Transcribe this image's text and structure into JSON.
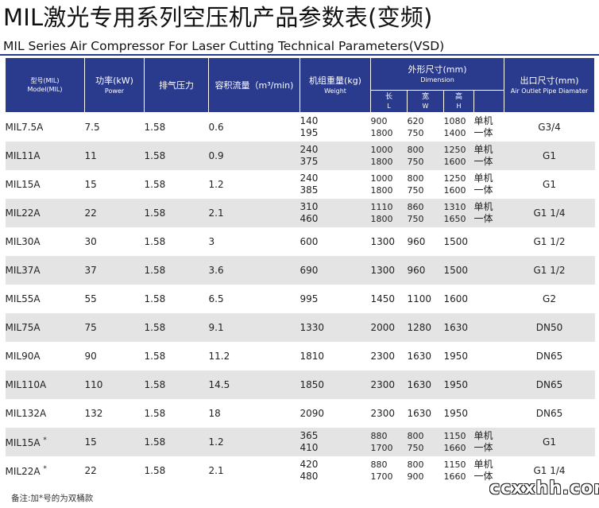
{
  "title": {
    "zh": "MIL激光专用系列空压机产品参数表(变频)",
    "en": "MIL Series Air Compressor For Laser Cutting Technical Parameters(VSD)"
  },
  "headers": {
    "model": {
      "zh": "型号(MIL)",
      "en": "Model(MIL)"
    },
    "power": {
      "zh": "功率(kW)",
      "en": "Power"
    },
    "pressure": {
      "zh": "排气压力"
    },
    "flow": {
      "zh": "容积流量（m³/min)"
    },
    "weight": {
      "zh": "机组重量(kg)",
      "en": "Weight"
    },
    "dimension": {
      "zh": "外形尺寸(mm)",
      "en": "Dimension"
    },
    "length": {
      "zh": "长",
      "en": "L"
    },
    "width": {
      "zh": "宽",
      "en": "W"
    },
    "height": {
      "zh": "高",
      "en": "H"
    },
    "outlet": {
      "zh": "出口尺寸(mm)",
      "en": "Air Outlet Pipe Diamater"
    }
  },
  "rows": [
    {
      "model": "MIL7.5A",
      "power": "7.5",
      "pressure": "1.58",
      "flow": "0.6",
      "weight": [
        "140",
        "195"
      ],
      "l": [
        "900",
        "1800"
      ],
      "w": [
        "620",
        "750"
      ],
      "h": [
        "1080",
        "1400"
      ],
      "tag": [
        "单机",
        "一体"
      ],
      "outlet": "G3/4"
    },
    {
      "model": "MIL11A",
      "power": "11",
      "pressure": "1.58",
      "flow": "0.9",
      "weight": [
        "240",
        "375"
      ],
      "l": [
        "1000",
        "1800"
      ],
      "w": [
        "800",
        "750"
      ],
      "h": [
        "1250",
        "1600"
      ],
      "tag": [
        "单机",
        "一体"
      ],
      "outlet": "G1"
    },
    {
      "model": "MIL15A",
      "power": "15",
      "pressure": "1.58",
      "flow": "1.2",
      "weight": [
        "240",
        "385"
      ],
      "l": [
        "1000",
        "1800"
      ],
      "w": [
        "800",
        "750"
      ],
      "h": [
        "1250",
        "1600"
      ],
      "tag": [
        "单机",
        "一体"
      ],
      "outlet": "G1"
    },
    {
      "model": "MIL22A",
      "power": "22",
      "pressure": "1.58",
      "flow": "2.1",
      "weight": [
        "310",
        "460"
      ],
      "l": [
        "1110",
        "1800"
      ],
      "w": [
        "860",
        "750"
      ],
      "h": [
        "1310",
        "1650"
      ],
      "tag": [
        "单机",
        "一体"
      ],
      "outlet": "G1  1/4"
    },
    {
      "model": "MIL30A",
      "power": "30",
      "pressure": "1.58",
      "flow": "3",
      "weight": [
        "600"
      ],
      "l": [
        "1300"
      ],
      "w": [
        "960"
      ],
      "h": [
        "1500"
      ],
      "tag": [],
      "outlet": "G1  1/2"
    },
    {
      "model": "MIL37A",
      "power": "37",
      "pressure": "1.58",
      "flow": "3.6",
      "weight": [
        "690"
      ],
      "l": [
        "1300"
      ],
      "w": [
        "960"
      ],
      "h": [
        "1500"
      ],
      "tag": [],
      "outlet": "G1  1/2"
    },
    {
      "model": "MIL55A",
      "power": "55",
      "pressure": "1.58",
      "flow": "6.5",
      "weight": [
        "995"
      ],
      "l": [
        "1450"
      ],
      "w": [
        "1100"
      ],
      "h": [
        "1600"
      ],
      "tag": [],
      "outlet": "G2"
    },
    {
      "model": "MIL75A",
      "power": "75",
      "pressure": "1.58",
      "flow": "9.1",
      "weight": [
        "1330"
      ],
      "l": [
        "2000"
      ],
      "w": [
        "1280"
      ],
      "h": [
        "1630"
      ],
      "tag": [],
      "outlet": "DN50"
    },
    {
      "model": "MIL90A",
      "power": "90",
      "pressure": "1.58",
      "flow": "11.2",
      "weight": [
        "1810"
      ],
      "l": [
        "2300"
      ],
      "w": [
        "1630"
      ],
      "h": [
        "1950"
      ],
      "tag": [],
      "outlet": "DN65"
    },
    {
      "model": "MIL110A",
      "power": "110",
      "pressure": "1.58",
      "flow": "14.5",
      "weight": [
        "1850"
      ],
      "l": [
        "2300"
      ],
      "w": [
        "1630"
      ],
      "h": [
        "1950"
      ],
      "tag": [],
      "outlet": "DN65"
    },
    {
      "model": "MIL132A",
      "power": "132",
      "pressure": "1.58",
      "flow": "18",
      "weight": [
        "2090"
      ],
      "l": [
        "2300"
      ],
      "w": [
        "1630"
      ],
      "h": [
        "1950"
      ],
      "tag": [],
      "outlet": "DN65"
    },
    {
      "model": "MIL15A",
      "mark": "*",
      "power": "15",
      "pressure": "1.58",
      "flow": "1.2",
      "weight": [
        "365",
        "410"
      ],
      "l": [
        "880",
        "1700"
      ],
      "w": [
        "800",
        "750"
      ],
      "h": [
        "1150",
        "1660"
      ],
      "tag": [
        "单机",
        "一体"
      ],
      "outlet": "G1"
    },
    {
      "model": "MIL22A",
      "mark": "*",
      "power": "22",
      "pressure": "1.58",
      "flow": "2.1",
      "weight": [
        "420",
        "480"
      ],
      "l": [
        "880",
        "1700"
      ],
      "w": [
        "800",
        "900"
      ],
      "h": [
        "1150",
        "1660"
      ],
      "tag": [
        "单机",
        "一体"
      ],
      "outlet": "G1  1/4"
    }
  ],
  "note": "备注:加*号的为双桶款",
  "watermark": "ccxxhh.com",
  "colors": {
    "header_bg": "#2a3a8c",
    "stripe_bg": "#e4e4e4"
  }
}
